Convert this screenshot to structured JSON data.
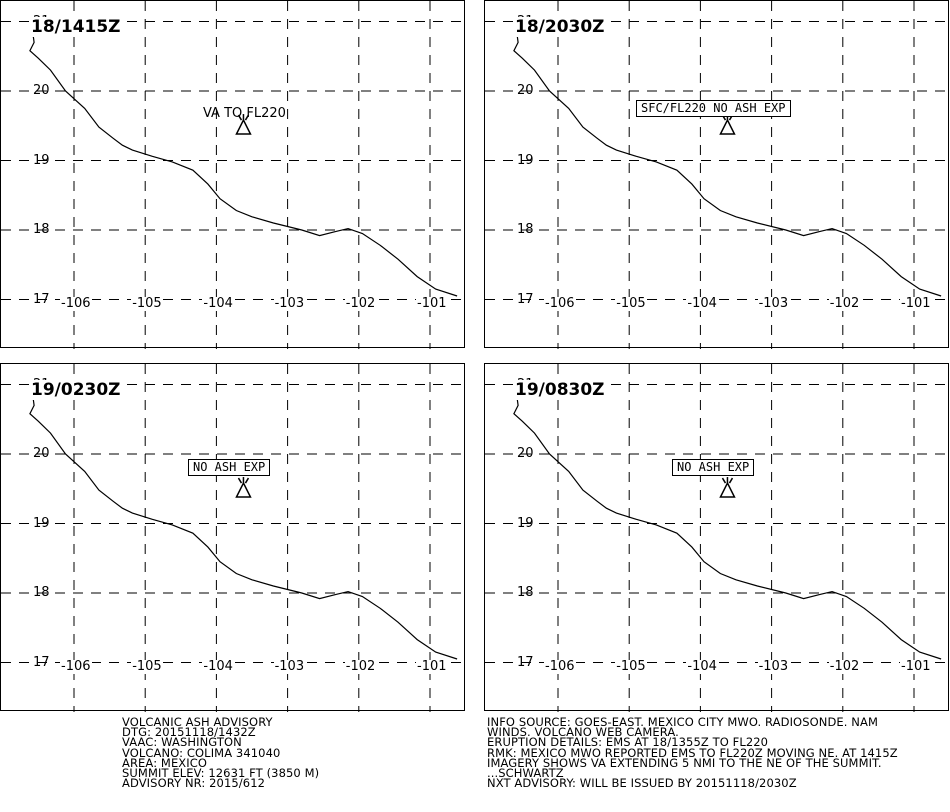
{
  "map": {
    "lat_labels": [
      "21",
      "20",
      "19",
      "18",
      "17"
    ],
    "lon_labels": [
      "-106",
      "-105",
      "-104",
      "-103",
      "-102",
      "-101"
    ],
    "lat_range": [
      17,
      21
    ],
    "lon_range": [
      -106.2,
      -100.6
    ],
    "grid": "dashed",
    "volcano_lon": -103.62,
    "volcano_lat": 19.51,
    "coastline": [
      [
        -106.62,
        21.0
      ],
      [
        -106.58,
        20.85
      ],
      [
        -106.56,
        20.7
      ],
      [
        -106.62,
        20.58
      ],
      [
        -106.5,
        20.47
      ],
      [
        -106.33,
        20.3
      ],
      [
        -106.12,
        20.0
      ],
      [
        -105.85,
        19.75
      ],
      [
        -105.65,
        19.48
      ],
      [
        -105.45,
        19.32
      ],
      [
        -105.32,
        19.22
      ],
      [
        -105.18,
        19.15
      ],
      [
        -104.9,
        19.06
      ],
      [
        -104.62,
        18.98
      ],
      [
        -104.33,
        18.86
      ],
      [
        -104.12,
        18.66
      ],
      [
        -103.95,
        18.45
      ],
      [
        -103.72,
        18.28
      ],
      [
        -103.5,
        18.19
      ],
      [
        -103.2,
        18.1
      ],
      [
        -102.8,
        18.0
      ],
      [
        -102.55,
        17.92
      ],
      [
        -102.32,
        17.98
      ],
      [
        -102.15,
        18.02
      ],
      [
        -101.95,
        17.95
      ],
      [
        -101.7,
        17.78
      ],
      [
        -101.45,
        17.58
      ],
      [
        -101.18,
        17.33
      ],
      [
        -100.92,
        17.15
      ],
      [
        -100.62,
        17.05
      ]
    ]
  },
  "panels": [
    {
      "time": "18/1415Z",
      "note": "VA TO FL220",
      "boxed": false
    },
    {
      "time": "18/2030Z",
      "note": "SFC/FL220 NO ASH EXP",
      "boxed": true
    },
    {
      "time": "19/0230Z",
      "note": "NO ASH EXP",
      "boxed": true
    },
    {
      "time": "19/0830Z",
      "note": "NO ASH EXP",
      "boxed": true
    }
  ],
  "advisory_left": [
    "VOLCANIC ASH ADVISORY",
    "DTG: 20151118/1432Z",
    "VAAC: WASHINGTON",
    "VOLCANO: COLIMA 341040",
    "AREA: MEXICO",
    "SUMMIT ELEV: 12631 FT (3850 M)",
    "ADVISORY NR: 2015/612"
  ],
  "advisory_right": [
    "INFO SOURCE: GOES-EAST. MEXICO CITY MWO. RADIOSONDE. NAM",
    "WINDS. VOLCANO WEB CAMERA.",
    "ERUPTION DETAILS: EMS AT 18/1355Z TO FL220",
    "RMK: MEXICO MWO REPORTED EMS TO FL220Z MOVING NE. AT 1415Z",
    "IMAGERY SHOWS VA EXTENDING 5 NMI TO THE NE OF THE SUMMIT.",
    "...SCHWARTZ",
    "NXT ADVISORY: WILL BE ISSUED BY 20151118/2030Z"
  ]
}
